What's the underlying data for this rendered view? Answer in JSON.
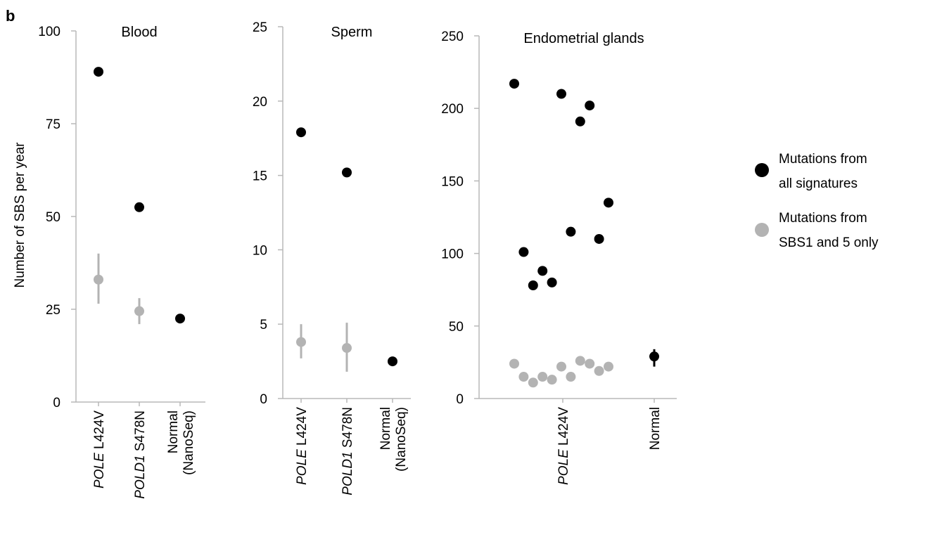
{
  "panel_label": "b",
  "y_axis_label": "Number of SBS per year",
  "legend": {
    "position": "right",
    "items": [
      {
        "line1": "Mutations from",
        "line2": "all signatures",
        "color": "#000000"
      },
      {
        "line1": "Mutations from",
        "line2": "SBS1 and 5 only",
        "color": "#b3b3b3"
      }
    ]
  },
  "colors": {
    "all": "#000000",
    "sbs15": "#b3b3b3",
    "axis": "#b8b8b8"
  },
  "chart_data": [
    {
      "type": "scatter",
      "title": "Blood",
      "ylim": [
        0,
        100
      ],
      "yticks": [
        0,
        25,
        50,
        75,
        100
      ],
      "categories": [
        {
          "italic": "POLE",
          "rest": " L424V"
        },
        {
          "italic": "POLD1",
          "rest": " S478N"
        },
        {
          "italic": "",
          "rest": "Normal",
          "rest2": "(NanoSeq)"
        }
      ],
      "series": [
        {
          "name": "Mutations from all signatures",
          "points": [
            {
              "x": 0,
              "y": 89
            },
            {
              "x": 1,
              "y": 52.5
            },
            {
              "x": 2,
              "y": 22.5
            }
          ]
        },
        {
          "name": "Mutations from SBS1 and 5 only",
          "points": [
            {
              "x": 0,
              "y": 33,
              "lo": 26.5,
              "hi": 40
            },
            {
              "x": 1,
              "y": 24.5,
              "lo": 21,
              "hi": 28
            }
          ]
        }
      ]
    },
    {
      "type": "scatter",
      "title": "Sperm",
      "ylim": [
        0,
        25
      ],
      "yticks": [
        0,
        5,
        10,
        15,
        20,
        25
      ],
      "categories": [
        {
          "italic": "POLE",
          "rest": " L424V"
        },
        {
          "italic": "POLD1",
          "rest": " S478N"
        },
        {
          "italic": "",
          "rest": "Normal",
          "rest2": "(NanoSeq)"
        }
      ],
      "series": [
        {
          "name": "Mutations from all signatures",
          "points": [
            {
              "x": 0,
              "y": 17.9
            },
            {
              "x": 1,
              "y": 15.2
            },
            {
              "x": 2,
              "y": 2.5
            }
          ]
        },
        {
          "name": "Mutations from SBS1 and 5 only",
          "points": [
            {
              "x": 0,
              "y": 3.8,
              "lo": 2.7,
              "hi": 5.0
            },
            {
              "x": 1,
              "y": 3.4,
              "lo": 1.8,
              "hi": 5.1
            }
          ]
        }
      ]
    },
    {
      "type": "scatter",
      "title": "Endometrial glands",
      "ylim": [
        0,
        250
      ],
      "yticks": [
        0,
        50,
        100,
        150,
        200,
        250
      ],
      "categories": [
        {
          "italic": "POLE",
          "rest": " L424V"
        },
        {
          "italic": "",
          "rest": "Normal"
        }
      ],
      "series": [
        {
          "name": "Mutations from all signatures",
          "points": [
            {
              "x": 0,
              "y": 217
            },
            {
              "x": 1,
              "y": 101
            },
            {
              "x": 2,
              "y": 78
            },
            {
              "x": 3,
              "y": 88
            },
            {
              "x": 4,
              "y": 80
            },
            {
              "x": 5,
              "y": 210
            },
            {
              "x": 6,
              "y": 115
            },
            {
              "x": 7,
              "y": 191
            },
            {
              "x": 8,
              "y": 202
            },
            {
              "x": 9,
              "y": 110
            },
            {
              "x": 10,
              "y": 135
            },
            {
              "x": 15,
              "y": 29,
              "lo": 22,
              "hi": 34
            }
          ]
        },
        {
          "name": "Mutations from SBS1 and 5 only",
          "points": [
            {
              "x": 0,
              "y": 24
            },
            {
              "x": 1,
              "y": 15
            },
            {
              "x": 2,
              "y": 11
            },
            {
              "x": 3,
              "y": 15
            },
            {
              "x": 4,
              "y": 13
            },
            {
              "x": 5,
              "y": 22
            },
            {
              "x": 6,
              "y": 15
            },
            {
              "x": 7,
              "y": 26
            },
            {
              "x": 8,
              "y": 24
            },
            {
              "x": 9,
              "y": 19
            },
            {
              "x": 10,
              "y": 22
            }
          ]
        }
      ]
    }
  ]
}
